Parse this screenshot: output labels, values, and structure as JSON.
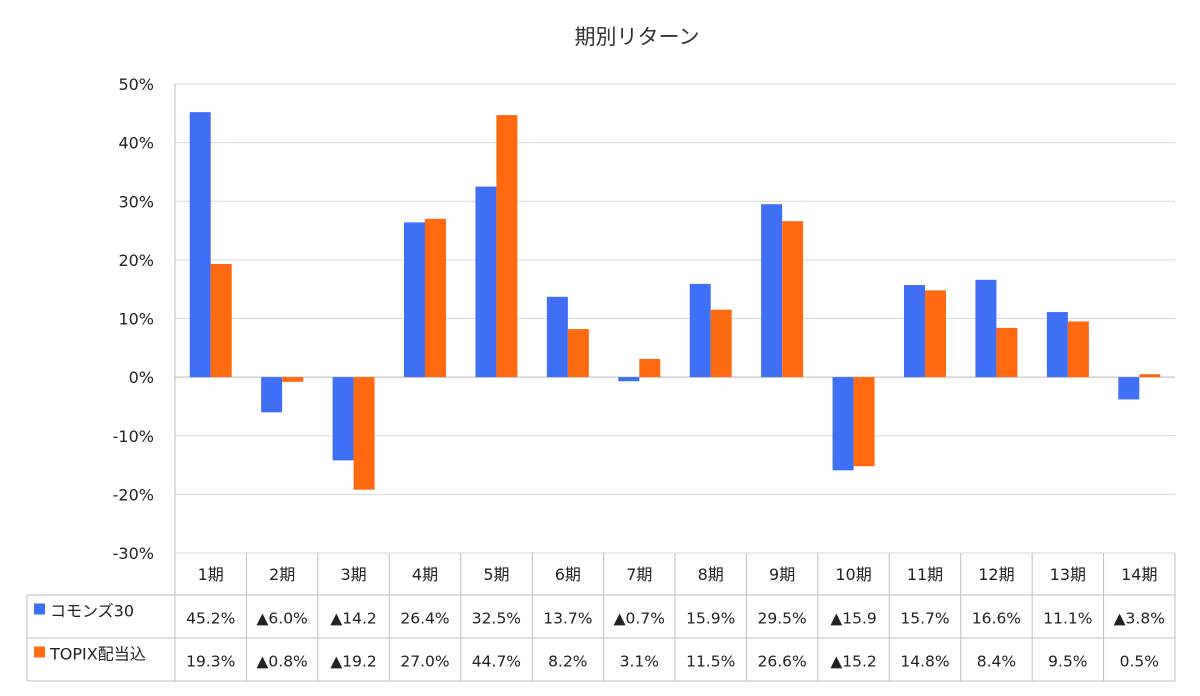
{
  "chart_data": {
    "type": "bar",
    "title": "期別リターン",
    "xlabel": "",
    "ylabel": "",
    "ylim": [
      -30,
      50
    ],
    "yticks": [
      50,
      40,
      30,
      20,
      10,
      0,
      -10,
      -20,
      -30
    ],
    "ytick_labels": [
      "50%",
      "40%",
      "30%",
      "20%",
      "10%",
      "0%",
      "-10%",
      "-20%",
      "-30%"
    ],
    "grid": true,
    "legend_position": "bottom-left (in data table)",
    "categories": [
      "1期",
      "2期",
      "3期",
      "4期",
      "5期",
      "6期",
      "7期",
      "8期",
      "9期",
      "10期",
      "11期",
      "12期",
      "13期",
      "14期"
    ],
    "series": [
      {
        "name": "コモンズ30",
        "color": "#3f6ff5",
        "values": [
          45.2,
          -6.0,
          -14.2,
          26.4,
          32.5,
          13.7,
          -0.7,
          15.9,
          29.5,
          -15.9,
          15.7,
          16.6,
          11.1,
          -3.8
        ],
        "table_labels": [
          "45.2%",
          "▲6.0%",
          "▲14.2",
          "26.4%",
          "32.5%",
          "13.7%",
          "▲0.7%",
          "15.9%",
          "29.5%",
          "▲15.9",
          "15.7%",
          "16.6%",
          "11.1%",
          "▲3.8%"
        ]
      },
      {
        "name": "TOPIX配当込",
        "color": "#ff6a10",
        "values": [
          19.3,
          -0.8,
          -19.2,
          27.0,
          44.7,
          8.2,
          3.1,
          11.5,
          26.6,
          -15.2,
          14.8,
          8.4,
          9.5,
          0.5
        ],
        "table_labels": [
          "19.3%",
          "▲0.8%",
          "▲19.2",
          "27.0%",
          "44.7%",
          "8.2%",
          "3.1%",
          "11.5%",
          "26.6%",
          "▲15.2",
          "14.8%",
          "8.4%",
          "9.5%",
          "0.5%"
        ]
      }
    ]
  }
}
